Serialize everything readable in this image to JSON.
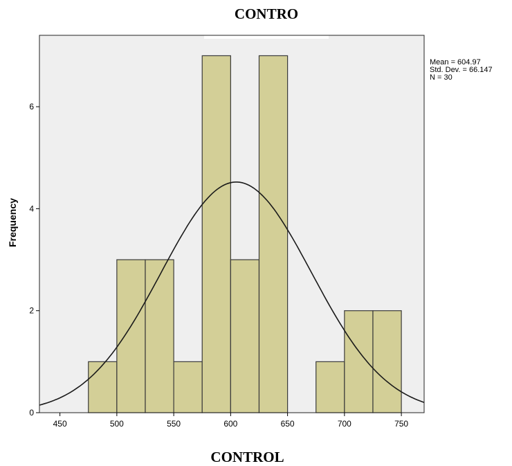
{
  "page": {
    "top_title": "CONTRO",
    "bottom_title": "CONTROL"
  },
  "chart_data": {
    "type": "bar",
    "histogram": true,
    "bins": [
      {
        "from": 475,
        "to": 500,
        "value": 1
      },
      {
        "from": 500,
        "to": 525,
        "value": 3
      },
      {
        "from": 525,
        "to": 550,
        "value": 3
      },
      {
        "from": 550,
        "to": 575,
        "value": 1
      },
      {
        "from": 575,
        "to": 600,
        "value": 7
      },
      {
        "from": 600,
        "to": 625,
        "value": 3
      },
      {
        "from": 625,
        "to": 650,
        "value": 7
      },
      {
        "from": 650,
        "to": 675,
        "value": 0
      },
      {
        "from": 675,
        "to": 700,
        "value": 1
      },
      {
        "from": 700,
        "to": 725,
        "value": 2
      },
      {
        "from": 725,
        "to": 750,
        "value": 2
      }
    ],
    "x_ticks": [
      450,
      500,
      550,
      600,
      650,
      700,
      750
    ],
    "y_ticks": [
      0,
      2,
      4,
      6
    ],
    "xlim": [
      432,
      770
    ],
    "ylim": [
      0,
      7.4
    ],
    "ylabel": "Frequency",
    "xlabel": "",
    "normal_curve": {
      "mean": 604.97,
      "sd": 66.147,
      "n": 30,
      "bin_width": 25
    },
    "stats": [
      "Mean = 604.97",
      "Std. Dev. = 66.147",
      "N = 30"
    ],
    "colors": {
      "bar_fill": "#d3cf97",
      "bar_stroke": "#3a3a3a",
      "plot_bg": "#efefef",
      "curve": "#1a1a1a"
    },
    "grid": false
  }
}
